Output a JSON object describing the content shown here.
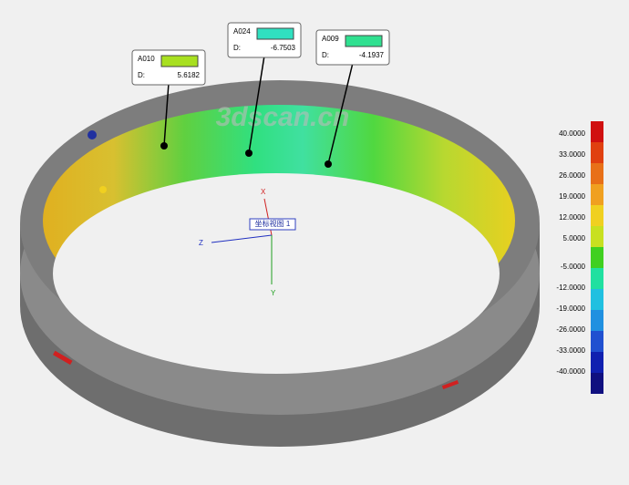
{
  "watermark": "3dscan.cn",
  "callouts": [
    {
      "id": "A010",
      "label": "D:",
      "value": "5.6182"
    },
    {
      "id": "A024",
      "label": "D:",
      "value": "-6.7503"
    },
    {
      "id": "A009",
      "label": "D:",
      "value": "-4.1937"
    }
  ],
  "view_label": "坐标视图 1",
  "axes": {
    "x": "X",
    "y": "Y",
    "z": "Z"
  },
  "legend": {
    "labels": [
      "40.0000",
      "33.0000",
      "26.0000",
      "19.0000",
      "12.0000",
      "5.0000",
      "-5.0000",
      "-12.0000",
      "-19.0000",
      "-26.0000",
      "-33.0000",
      "-40.0000"
    ]
  }
}
